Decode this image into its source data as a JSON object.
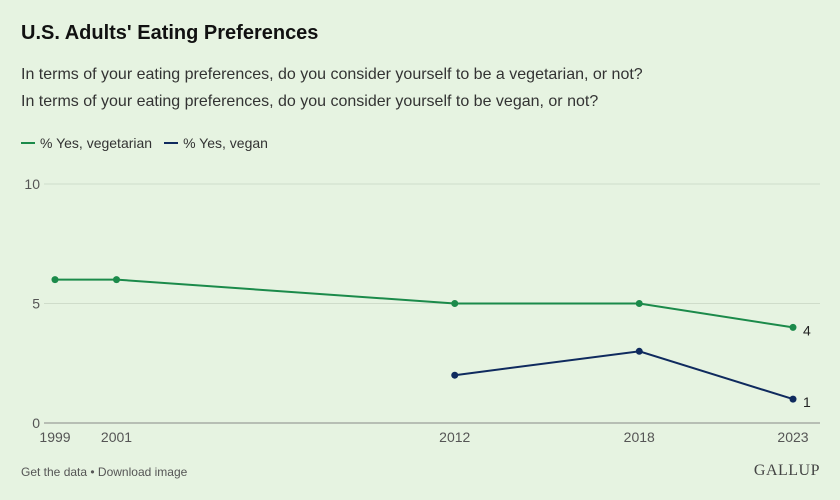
{
  "title": "U.S. Adults' Eating Preferences",
  "subtitle_1": "In terms of your eating preferences, do you consider yourself to be a vegetarian, or not?",
  "subtitle_2": "In terms of your eating preferences, do you consider yourself to be vegan, or not?",
  "footer": {
    "get_data": "Get the data",
    "separator": " • ",
    "download": "Download image",
    "brand": "GALLUP"
  },
  "chart_data": {
    "type": "line",
    "title": "U.S. Adults' Eating Preferences",
    "xlabel": "",
    "ylabel": "",
    "x_ticks": [
      1999,
      2001,
      2012,
      2018,
      2023
    ],
    "y_ticks": [
      0,
      5,
      10
    ],
    "xlim": [
      1999,
      2023
    ],
    "ylim": [
      0,
      10
    ],
    "grid": true,
    "legend_position": "top-left",
    "series": [
      {
        "name": "% Yes, vegetarian",
        "color": "#1b8a4a",
        "x": [
          1999,
          2001,
          2012,
          2018,
          2023
        ],
        "values": [
          6,
          6,
          5,
          5,
          4
        ],
        "end_label": "4"
      },
      {
        "name": "% Yes, vegan",
        "color": "#0f2a5e",
        "x": [
          2012,
          2018,
          2023
        ],
        "values": [
          2,
          3,
          1
        ],
        "end_label": "1"
      }
    ]
  }
}
